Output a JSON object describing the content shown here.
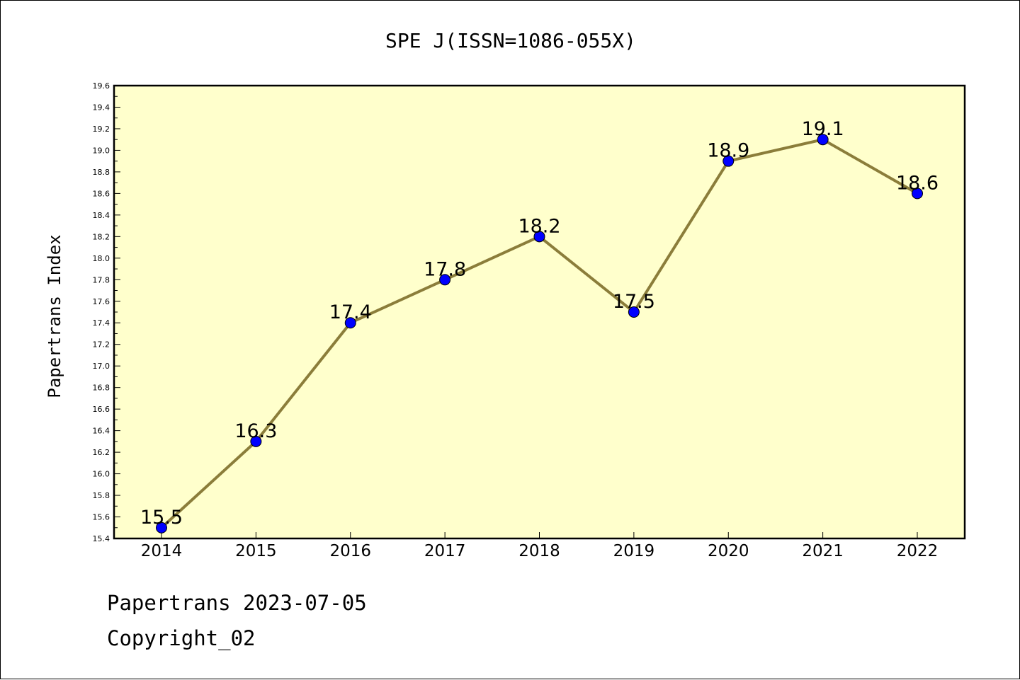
{
  "chart_data": {
    "type": "line",
    "title": "SPE J(ISSN=1086-055X)",
    "xlabel": "",
    "ylabel": "Papertrans Index",
    "categories": [
      "2014",
      "2015",
      "2016",
      "2017",
      "2018",
      "2019",
      "2020",
      "2021",
      "2022"
    ],
    "values": [
      15.5,
      16.3,
      17.4,
      17.8,
      18.2,
      17.5,
      18.9,
      19.1,
      18.6
    ],
    "data_labels": [
      "15.5",
      "16.3",
      "17.4",
      "17.8",
      "18.2",
      "17.5",
      "18.9",
      "19.1",
      "18.6"
    ],
    "ylim": [
      15.4,
      19.6
    ],
    "yticks": [
      "15.4",
      "15.6",
      "15.8",
      "16.0",
      "16.2",
      "16.4",
      "16.6",
      "16.8",
      "17.0",
      "17.2",
      "17.4",
      "17.6",
      "17.8",
      "18.0",
      "18.2",
      "18.4",
      "18.6",
      "18.8",
      "19.0",
      "19.2",
      "19.4",
      "19.6"
    ],
    "grid": false,
    "colors": {
      "plot_background": "#ffffcc",
      "line": "#8b7d3a",
      "marker": "#0000ff"
    }
  },
  "footer": {
    "line1": "Papertrans 2023-07-05",
    "line2": "Copyright_02"
  }
}
